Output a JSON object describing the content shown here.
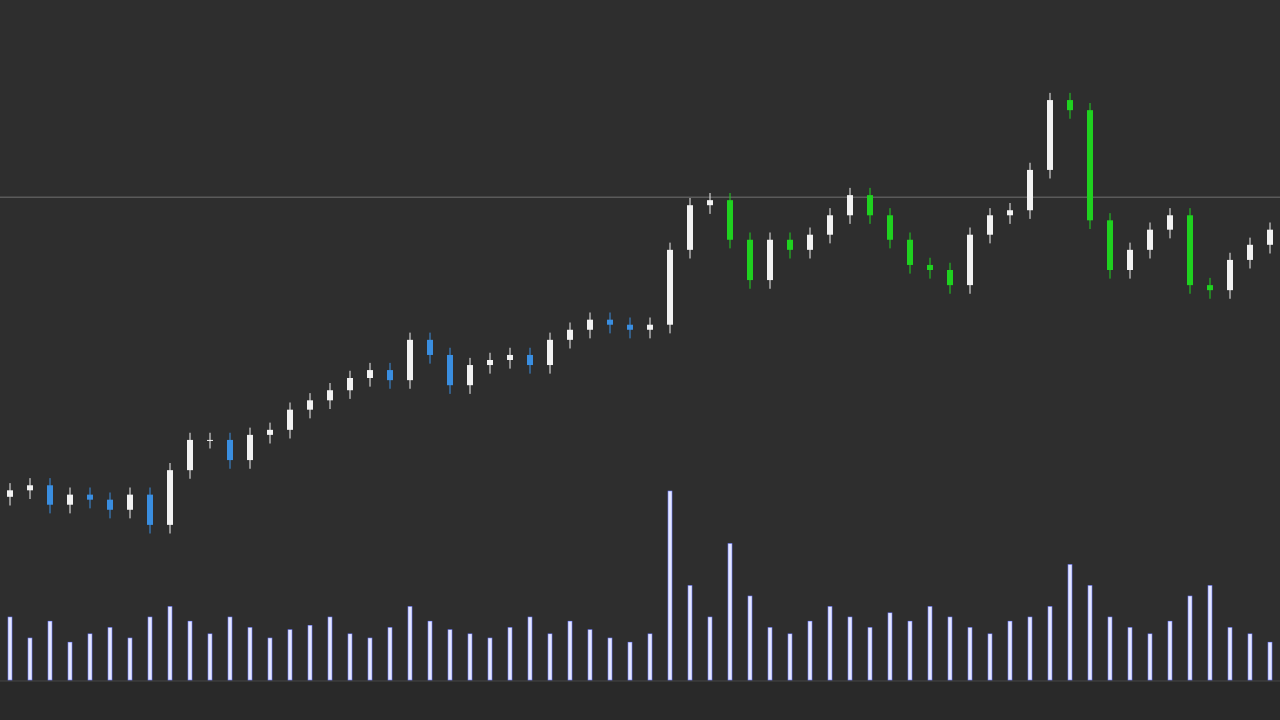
{
  "chart_data": {
    "type": "candlestick",
    "ylim": [
      0,
      100
    ],
    "reference_line": {
      "value": 72.6,
      "color": "#5a5a5a"
    },
    "series": [
      {
        "up_color": "#f2f2f2",
        "down_color": "#3a8ee0",
        "open": [
          31.0,
          31.9,
          32.6,
          29.9,
          31.3,
          30.6,
          29.2,
          31.3,
          27.1,
          34.7,
          38.9,
          38.9,
          36.1,
          39.6,
          40.3,
          43.1,
          44.4,
          45.8,
          47.5,
          48.6,
          47.2,
          52.8,
          50.7,
          46.5,
          49.3,
          50.0,
          50.7,
          49.3,
          52.8,
          54.2,
          55.6,
          54.9,
          54.2
        ],
        "high": [
          32.9,
          33.6,
          33.6,
          32.3,
          32.3,
          31.6,
          32.3,
          32.3,
          35.7,
          39.9,
          39.9,
          39.9,
          40.6,
          41.3,
          44.1,
          45.4,
          46.8,
          48.5,
          49.6,
          49.6,
          53.8,
          53.8,
          51.7,
          50.3,
          51.0,
          51.7,
          51.7,
          53.8,
          55.2,
          56.6,
          56.6,
          55.9,
          55.9
        ],
        "low": [
          29.8,
          30.7,
          28.7,
          28.7,
          29.4,
          28.0,
          28.0,
          25.9,
          25.9,
          33.5,
          37.7,
          34.9,
          34.9,
          38.4,
          39.1,
          41.9,
          43.2,
          44.6,
          46.3,
          46.0,
          46.0,
          49.5,
          45.3,
          45.3,
          48.1,
          48.8,
          48.1,
          48.1,
          51.6,
          53.0,
          53.7,
          53.0,
          53.0
        ],
        "close": [
          31.9,
          32.6,
          29.9,
          31.3,
          30.6,
          29.2,
          31.3,
          27.1,
          34.7,
          38.9,
          38.9,
          36.1,
          39.6,
          40.3,
          43.1,
          44.4,
          45.8,
          47.5,
          48.6,
          47.2,
          52.8,
          50.7,
          46.5,
          49.3,
          50.0,
          50.7,
          49.3,
          52.8,
          54.2,
          55.6,
          54.9,
          54.2,
          54.9
        ]
      },
      {
        "up_color": "#f2f2f2",
        "down_color": "#1fd11f",
        "open": [
          54.9,
          65.3,
          71.5,
          72.2,
          66.7,
          61.1,
          66.7,
          65.3,
          67.4,
          70.1,
          72.9,
          70.1,
          66.7,
          63.2,
          62.5,
          60.4,
          67.4,
          70.1,
          70.8,
          76.4,
          86.1,
          84.7,
          69.4,
          62.5,
          65.3,
          68.1,
          70.1,
          60.4,
          59.7,
          63.9,
          66.0
        ],
        "high": [
          66.3,
          72.5,
          73.2,
          73.2,
          67.7,
          67.7,
          67.7,
          68.4,
          71.1,
          73.9,
          73.9,
          71.1,
          67.7,
          64.2,
          63.5,
          68.4,
          71.1,
          71.8,
          77.4,
          87.1,
          87.1,
          85.7,
          70.4,
          66.3,
          69.1,
          71.1,
          71.1,
          61.4,
          64.9,
          67.0,
          69.1
        ],
        "low": [
          53.7,
          64.1,
          70.3,
          65.5,
          59.9,
          59.9,
          64.1,
          64.1,
          66.2,
          68.9,
          68.9,
          65.5,
          62.0,
          61.3,
          59.2,
          59.2,
          66.2,
          68.9,
          69.6,
          75.2,
          83.5,
          68.2,
          61.3,
          61.3,
          64.1,
          66.9,
          59.2,
          58.5,
          58.5,
          62.7,
          64.8
        ],
        "close": [
          65.3,
          71.5,
          72.2,
          66.7,
          61.1,
          66.7,
          65.3,
          67.4,
          70.1,
          72.9,
          70.1,
          66.7,
          63.2,
          62.5,
          60.4,
          67.4,
          70.1,
          70.8,
          76.4,
          86.1,
          84.7,
          69.4,
          62.5,
          65.3,
          68.1,
          70.1,
          60.4,
          59.7,
          63.9,
          66.0,
          68.1
        ]
      }
    ],
    "volume": {
      "color": "#e4e7ff",
      "ylim": [
        0,
        100
      ],
      "values": [
        30,
        20,
        28,
        18,
        22,
        25,
        20,
        30,
        35,
        28,
        22,
        30,
        25,
        20,
        24,
        26,
        30,
        22,
        20,
        25,
        35,
        28,
        24,
        22,
        20,
        25,
        30,
        22,
        28,
        24,
        20,
        18,
        22,
        90,
        45,
        30,
        65,
        40,
        25,
        22,
        28,
        35,
        30,
        25,
        32,
        28,
        35,
        30,
        25,
        22,
        28,
        30,
        35,
        55,
        45,
        30,
        25,
        22,
        28,
        40,
        45,
        25,
        22,
        18
      ]
    }
  }
}
